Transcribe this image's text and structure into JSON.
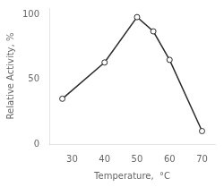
{
  "chart_data": {
    "type": "line",
    "x": [
      27,
      40,
      50,
      55,
      60,
      70
    ],
    "values": [
      35,
      63,
      98,
      87,
      65,
      10
    ],
    "xlabel": "Temperature,  °C",
    "ylabel": "Relative Activity, %",
    "xlim": [
      23,
      74
    ],
    "ylim": [
      0,
      105
    ],
    "xticks": [
      30,
      40,
      50,
      60,
      70
    ],
    "yticks": [
      0,
      50,
      100
    ],
    "grid": false,
    "color": "#2a2a2a",
    "marker": "circle"
  }
}
